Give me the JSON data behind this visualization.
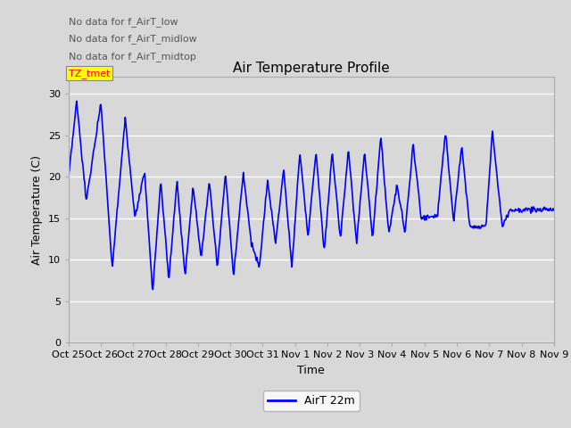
{
  "title": "Air Temperature Profile",
  "xlabel": "Time",
  "ylabel": "Air Temperature (C)",
  "line_color": "blue",
  "line_width": 1.2,
  "ylim": [
    0,
    32
  ],
  "yticks": [
    0,
    5,
    10,
    15,
    20,
    25,
    30
  ],
  "bg_color": "#d8d8d8",
  "legend_label": "AirT 22m",
  "annotations": [
    "No data for f_AirT_low",
    "No data for f_AirT_midlow",
    "No data for f_AirT_midtop"
  ],
  "annotation_box_text": "TZ_tmet",
  "xtick_labels": [
    "Oct 25",
    "Oct 26",
    "Oct 27",
    "Oct 28",
    "Oct 29",
    "Oct 30",
    "Oct 31",
    "Nov 1",
    "Nov 2",
    "Nov 3",
    "Nov 4",
    "Nov 5",
    "Nov 6",
    "Nov 7",
    "Nov 8",
    "Nov 9"
  ],
  "key_times": [
    0,
    0.25,
    0.55,
    1.0,
    1.35,
    1.75,
    2.05,
    2.35,
    2.6,
    2.85,
    3.1,
    3.35,
    3.6,
    3.85,
    4.1,
    4.35,
    4.6,
    4.85,
    5.1,
    5.4,
    5.65,
    5.9,
    6.15,
    6.4,
    6.65,
    6.9,
    7.15,
    7.4,
    7.65,
    7.9,
    8.15,
    8.4,
    8.65,
    8.9,
    9.15,
    9.4,
    9.65,
    9.9,
    10.15,
    10.4,
    10.65,
    10.9,
    11.15,
    11.4,
    11.65,
    11.9,
    12.15,
    12.4,
    12.65,
    12.9,
    13.1,
    13.4,
    13.65,
    13.9,
    14.1,
    14.35,
    14.6,
    14.85,
    15.1,
    15.35,
    15.6,
    15.85,
    16.0
  ],
  "key_temps": [
    19.8,
    29.0,
    17.0,
    29.0,
    9.0,
    27.0,
    15.0,
    20.5,
    6.0,
    19.5,
    7.5,
    19.5,
    8.0,
    19.0,
    10.0,
    19.5,
    9.0,
    20.5,
    8.0,
    20.5,
    12.0,
    9.0,
    19.5,
    12.0,
    21.0,
    9.0,
    23.0,
    12.8,
    23.0,
    11.0,
    23.0,
    12.5,
    23.2,
    12.0,
    23.0,
    12.5,
    25.0,
    13.0,
    19.0,
    13.2,
    24.0,
    15.0,
    15.2,
    15.2,
    25.5,
    14.5,
    23.8,
    14.0,
    14.0,
    14.0,
    25.5,
    14.0,
    16.0,
    16.0,
    16.0,
    16.0,
    16.0,
    16.0,
    16.0,
    16.0,
    16.0,
    16.0,
    16.0
  ]
}
